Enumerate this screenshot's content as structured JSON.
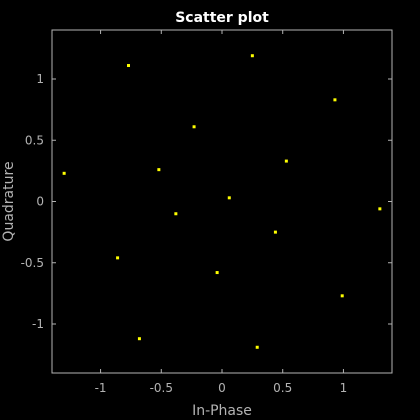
{
  "chart_data": {
    "type": "scatter",
    "title": "Scatter plot",
    "xlabel": "In-Phase",
    "ylabel": "Quadrature",
    "xlim": [
      -1.4,
      1.4
    ],
    "ylim": [
      -1.4,
      1.4
    ],
    "xticks": [
      -1,
      -0.5,
      0,
      0.5,
      1
    ],
    "yticks": [
      -1,
      -0.5,
      0,
      0.5,
      1
    ],
    "grid": false,
    "series": [
      {
        "color": "#ffff00",
        "points": [
          {
            "x": -1.3,
            "y": 0.23
          },
          {
            "x": -0.77,
            "y": 1.11
          },
          {
            "x": -0.52,
            "y": 0.26
          },
          {
            "x": -0.23,
            "y": 0.61
          },
          {
            "x": 0.25,
            "y": 1.19
          },
          {
            "x": 0.93,
            "y": 0.83
          },
          {
            "x": 0.53,
            "y": 0.33
          },
          {
            "x": 0.06,
            "y": 0.03
          },
          {
            "x": -0.38,
            "y": -0.1
          },
          {
            "x": 0.44,
            "y": -0.25
          },
          {
            "x": 1.3,
            "y": -0.06
          },
          {
            "x": -0.86,
            "y": -0.46
          },
          {
            "x": -0.04,
            "y": -0.58
          },
          {
            "x": 0.99,
            "y": -0.77
          },
          {
            "x": -0.68,
            "y": -1.12
          },
          {
            "x": 0.29,
            "y": -1.19
          }
        ]
      }
    ]
  },
  "colors": {
    "figure_background": "#000000",
    "axes_background": "#000000",
    "axis_color": "#b3b3b3",
    "title_color": "#ffffff",
    "marker_color": "#ffff00"
  }
}
